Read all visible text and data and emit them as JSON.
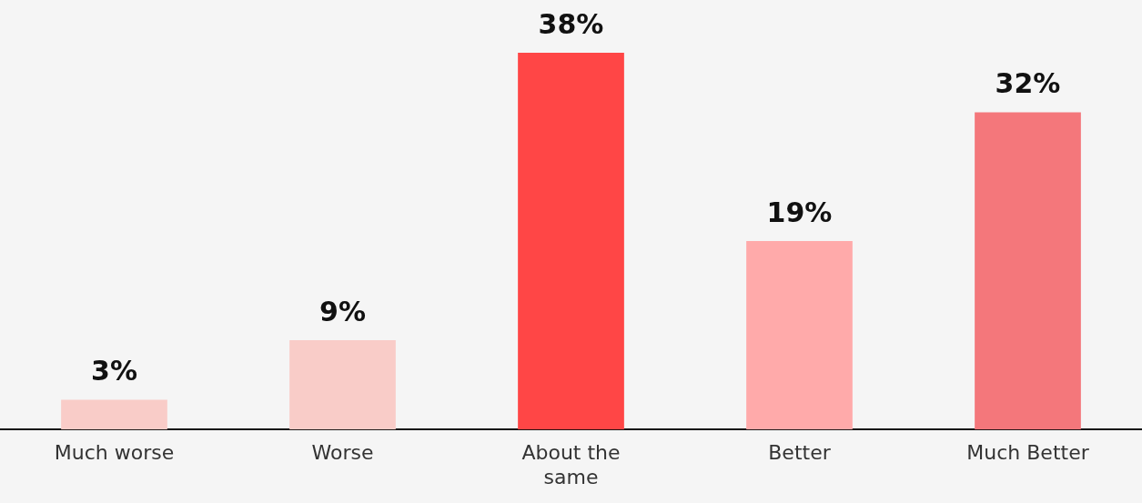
{
  "chart_data": {
    "type": "bar",
    "categories": [
      "Much worse",
      "Worse",
      "About the same",
      "Better",
      "Much Better"
    ],
    "values": [
      3,
      9,
      38,
      19,
      32
    ],
    "colors": [
      "#f9ccc8",
      "#f9ccc8",
      "#ff4646",
      "#ffaaaa",
      "#f4777b"
    ],
    "value_labels": [
      "3%",
      "9%",
      "38%",
      "19%",
      "32%"
    ],
    "grid": false,
    "legend": false
  }
}
